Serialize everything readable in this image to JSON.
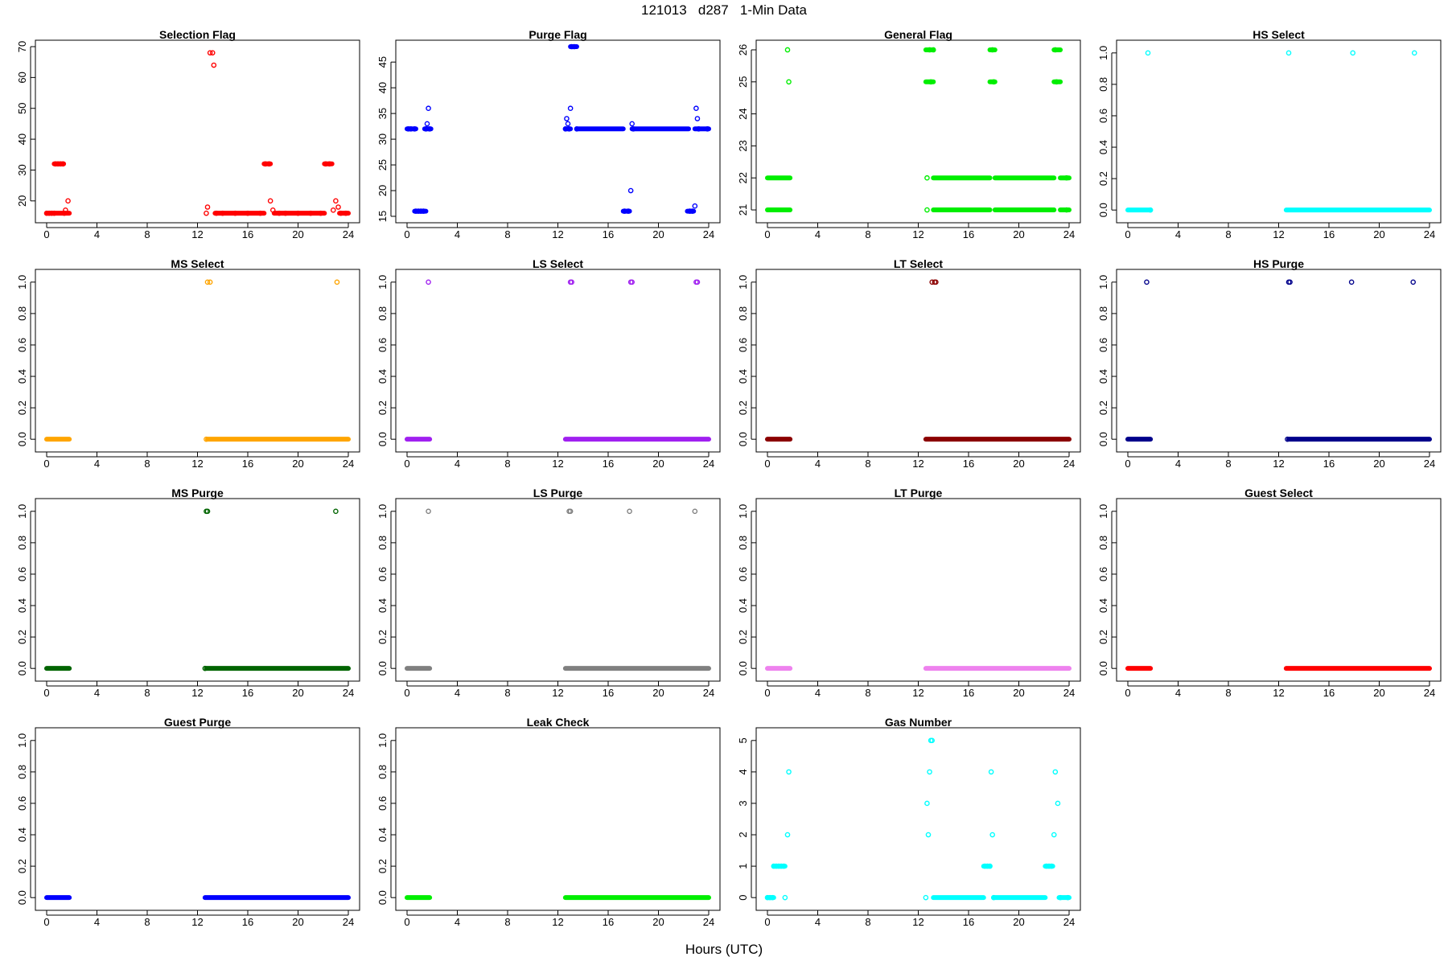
{
  "figure": {
    "title": "121013   d287   1-Min Data",
    "xlabel": "Hours (UTC)"
  },
  "chart_data": [
    {
      "type": "scatter",
      "title": "Selection Flag",
      "color": "#ff0000",
      "xlim": [
        0,
        24
      ],
      "xticks": [
        0,
        4,
        8,
        12,
        16,
        20,
        24
      ],
      "ylim": [
        15,
        70
      ],
      "yticks": [
        20,
        30,
        40,
        50,
        60,
        70
      ],
      "points": [
        [
          0,
          16
        ],
        [
          0.2,
          16
        ],
        [
          0.4,
          16
        ],
        [
          0.6,
          16
        ],
        [
          0.7,
          32
        ],
        [
          0.9,
          32
        ],
        [
          1.1,
          32
        ],
        [
          1.3,
          32
        ],
        [
          1.4,
          16
        ],
        [
          1.5,
          17
        ],
        [
          1.7,
          20
        ],
        [
          12.7,
          16
        ],
        [
          12.8,
          18
        ],
        [
          13.0,
          68
        ],
        [
          13.2,
          68
        ],
        [
          13.3,
          64
        ],
        [
          13.5,
          16
        ],
        [
          14,
          16
        ],
        [
          15,
          16
        ],
        [
          16,
          16
        ],
        [
          17,
          16
        ],
        [
          17.4,
          32
        ],
        [
          17.7,
          32
        ],
        [
          17.8,
          20
        ],
        [
          18.0,
          17
        ],
        [
          18.5,
          16
        ],
        [
          19,
          16
        ],
        [
          20,
          16
        ],
        [
          21,
          16
        ],
        [
          21.8,
          16
        ],
        [
          22.2,
          32
        ],
        [
          22.5,
          32
        ],
        [
          22.8,
          17
        ],
        [
          23.0,
          20
        ],
        [
          23.2,
          18
        ],
        [
          23.4,
          16
        ],
        [
          23.8,
          16
        ]
      ],
      "segments": [
        [
          0,
          1.8,
          16
        ],
        [
          0.6,
          1.35,
          32
        ],
        [
          13.4,
          17.3,
          16
        ],
        [
          17.3,
          17.8,
          32
        ],
        [
          18.1,
          22.1,
          16
        ],
        [
          22.1,
          22.7,
          32
        ],
        [
          23.3,
          24,
          16
        ]
      ]
    },
    {
      "type": "scatter",
      "title": "Purge Flag",
      "color": "#0000ff",
      "xlim": [
        0,
        24
      ],
      "xticks": [
        0,
        4,
        8,
        12,
        16,
        20,
        24
      ],
      "ylim": [
        15,
        48
      ],
      "yticks": [
        15,
        20,
        25,
        30,
        35,
        40,
        45
      ],
      "points": [
        [
          0.1,
          32
        ],
        [
          0.3,
          32
        ],
        [
          0.6,
          32
        ],
        [
          0.7,
          16
        ],
        [
          0.9,
          16
        ],
        [
          1.1,
          16
        ],
        [
          1.3,
          16
        ],
        [
          1.5,
          32
        ],
        [
          1.6,
          33
        ],
        [
          1.7,
          36
        ],
        [
          1.8,
          32
        ],
        [
          12.6,
          32
        ],
        [
          12.7,
          34
        ],
        [
          12.8,
          33
        ],
        [
          12.9,
          32
        ],
        [
          13.0,
          36
        ],
        [
          13.1,
          48
        ],
        [
          13.3,
          48
        ],
        [
          13.5,
          32
        ],
        [
          17.3,
          16
        ],
        [
          17.6,
          16
        ],
        [
          17.8,
          20
        ],
        [
          17.9,
          33
        ],
        [
          18.0,
          32
        ],
        [
          22.5,
          16
        ],
        [
          22.7,
          16
        ],
        [
          22.9,
          17
        ],
        [
          23.0,
          36
        ],
        [
          23.1,
          34
        ],
        [
          23.2,
          32
        ],
        [
          23.9,
          32
        ]
      ],
      "segments": [
        [
          0,
          0.7,
          32
        ],
        [
          0.6,
          1.5,
          16
        ],
        [
          1.4,
          1.9,
          32
        ],
        [
          12.6,
          13.0,
          32
        ],
        [
          13.0,
          13.5,
          48
        ],
        [
          13.5,
          17.2,
          32
        ],
        [
          17.2,
          17.7,
          16
        ],
        [
          17.9,
          22.4,
          32
        ],
        [
          22.3,
          22.8,
          16
        ],
        [
          22.9,
          24,
          32
        ]
      ]
    },
    {
      "type": "scatter",
      "title": "General Flag",
      "color": "#00ee00",
      "xlim": [
        0,
        24
      ],
      "xticks": [
        0,
        4,
        8,
        12,
        16,
        20,
        24
      ],
      "ylim": [
        20.8,
        26.1
      ],
      "yticks": [
        21,
        22,
        23,
        24,
        25,
        26
      ],
      "points": [
        [
          1.6,
          26
        ],
        [
          1.7,
          25
        ],
        [
          12.7,
          22
        ],
        [
          12.7,
          21
        ],
        [
          12.9,
          26
        ],
        [
          13.0,
          25
        ],
        [
          13.2,
          26
        ],
        [
          17.9,
          26
        ],
        [
          18.0,
          25
        ],
        [
          22.9,
          26
        ],
        [
          23.0,
          25
        ],
        [
          23.8,
          22
        ],
        [
          23.8,
          21
        ]
      ],
      "segments": [
        [
          0,
          1.8,
          22
        ],
        [
          0,
          1.8,
          21
        ],
        [
          12.6,
          13.2,
          26
        ],
        [
          12.6,
          13.2,
          25
        ],
        [
          13.2,
          17.7,
          22
        ],
        [
          13.2,
          17.7,
          21
        ],
        [
          17.7,
          18.1,
          26
        ],
        [
          17.7,
          18.1,
          25
        ],
        [
          18.1,
          22.8,
          22
        ],
        [
          18.1,
          22.8,
          21
        ],
        [
          22.8,
          23.3,
          26
        ],
        [
          22.8,
          23.3,
          25
        ],
        [
          23.3,
          24,
          22
        ],
        [
          23.3,
          24,
          21
        ]
      ]
    },
    {
      "type": "scatter",
      "title": "HS Select",
      "color": "#00ffff",
      "xlim": [
        0,
        24
      ],
      "xticks": [
        0,
        4,
        8,
        12,
        16,
        20,
        24
      ],
      "ylim": [
        -0.04,
        1.04
      ],
      "yticks": [
        0.0,
        0.2,
        0.4,
        0.6,
        0.8,
        1.0
      ],
      "points": [
        [
          1.6,
          1
        ],
        [
          1.8,
          0
        ],
        [
          12.8,
          1
        ],
        [
          17.9,
          1
        ],
        [
          22.8,
          1
        ]
      ],
      "segments": [
        [
          0,
          1.8,
          0
        ],
        [
          12.6,
          24,
          0
        ]
      ]
    },
    {
      "type": "scatter",
      "title": "MS Select",
      "color": "#ffa500",
      "xlim": [
        0,
        24
      ],
      "xticks": [
        0,
        4,
        8,
        12,
        16,
        20,
        24
      ],
      "ylim": [
        -0.04,
        1.04
      ],
      "yticks": [
        0.0,
        0.2,
        0.4,
        0.6,
        0.8,
        1.0
      ],
      "points": [
        [
          12.7,
          0
        ],
        [
          12.8,
          1
        ],
        [
          13.0,
          1
        ],
        [
          23.1,
          1
        ]
      ],
      "segments": [
        [
          0,
          1.8,
          0
        ],
        [
          12.8,
          24,
          0
        ]
      ]
    },
    {
      "type": "scatter",
      "title": "LS Select",
      "color": "#a020f0",
      "xlim": [
        0,
        24
      ],
      "xticks": [
        0,
        4,
        8,
        12,
        16,
        20,
        24
      ],
      "ylim": [
        -0.04,
        1.04
      ],
      "yticks": [
        0.0,
        0.2,
        0.4,
        0.6,
        0.8,
        1.0
      ],
      "points": [
        [
          1.7,
          1
        ],
        [
          13.0,
          1
        ],
        [
          13.1,
          1
        ],
        [
          17.8,
          1
        ],
        [
          17.9,
          1
        ],
        [
          23.0,
          1
        ],
        [
          23.1,
          1
        ]
      ],
      "segments": [
        [
          0,
          1.8,
          0
        ],
        [
          12.6,
          24,
          0
        ]
      ]
    },
    {
      "type": "scatter",
      "title": "LT Select",
      "color": "#8b0000",
      "xlim": [
        0,
        24
      ],
      "xticks": [
        0,
        4,
        8,
        12,
        16,
        20,
        24
      ],
      "ylim": [
        -0.04,
        1.04
      ],
      "yticks": [
        0.0,
        0.2,
        0.4,
        0.6,
        0.8,
        1.0
      ],
      "points": [
        [
          13.1,
          1
        ],
        [
          13.3,
          1
        ],
        [
          13.4,
          1
        ]
      ],
      "segments": [
        [
          0,
          1.8,
          0
        ],
        [
          12.6,
          24,
          0
        ]
      ]
    },
    {
      "type": "scatter",
      "title": "HS Purge",
      "color": "#00008b",
      "xlim": [
        0,
        24
      ],
      "xticks": [
        0,
        4,
        8,
        12,
        16,
        20,
        24
      ],
      "ylim": [
        -0.04,
        1.04
      ],
      "yticks": [
        0.0,
        0.2,
        0.4,
        0.6,
        0.8,
        1.0
      ],
      "points": [
        [
          1.5,
          1
        ],
        [
          12.7,
          0
        ],
        [
          12.8,
          1
        ],
        [
          12.9,
          1
        ],
        [
          17.8,
          1
        ],
        [
          22.7,
          1
        ]
      ],
      "segments": [
        [
          0,
          1.8,
          0
        ],
        [
          12.8,
          24,
          0
        ]
      ]
    },
    {
      "type": "scatter",
      "title": "MS Purge",
      "color": "#006400",
      "xlim": [
        0,
        24
      ],
      "xticks": [
        0,
        4,
        8,
        12,
        16,
        20,
        24
      ],
      "ylim": [
        -0.04,
        1.04
      ],
      "yticks": [
        0.0,
        0.2,
        0.4,
        0.6,
        0.8,
        1.0
      ],
      "points": [
        [
          12.6,
          0
        ],
        [
          12.7,
          1
        ],
        [
          12.8,
          1
        ],
        [
          23.0,
          1
        ]
      ],
      "segments": [
        [
          0,
          1.8,
          0
        ],
        [
          12.7,
          24,
          0
        ]
      ]
    },
    {
      "type": "scatter",
      "title": "LS Purge",
      "color": "#808080",
      "xlim": [
        0,
        24
      ],
      "xticks": [
        0,
        4,
        8,
        12,
        16,
        20,
        24
      ],
      "ylim": [
        -0.04,
        1.04
      ],
      "yticks": [
        0.0,
        0.2,
        0.4,
        0.6,
        0.8,
        1.0
      ],
      "points": [
        [
          1.7,
          1
        ],
        [
          12.9,
          1
        ],
        [
          13.0,
          1
        ],
        [
          17.7,
          1
        ],
        [
          22.9,
          1
        ]
      ],
      "segments": [
        [
          0,
          1.8,
          0
        ],
        [
          12.6,
          24,
          0
        ]
      ]
    },
    {
      "type": "scatter",
      "title": "LT Purge",
      "color": "#ee82ee",
      "xlim": [
        0,
        24
      ],
      "xticks": [
        0,
        4,
        8,
        12,
        16,
        20,
        24
      ],
      "ylim": [
        -0.04,
        1.04
      ],
      "yticks": [
        0.0,
        0.2,
        0.4,
        0.6,
        0.8,
        1.0
      ],
      "points": [],
      "segments": [
        [
          0,
          1.8,
          0
        ],
        [
          12.6,
          24,
          0
        ]
      ]
    },
    {
      "type": "scatter",
      "title": "Guest Select",
      "color": "#ff0000",
      "xlim": [
        0,
        24
      ],
      "xticks": [
        0,
        4,
        8,
        12,
        16,
        20,
        24
      ],
      "ylim": [
        -0.04,
        1.04
      ],
      "yticks": [
        0.0,
        0.2,
        0.4,
        0.6,
        0.8,
        1.0
      ],
      "points": [],
      "segments": [
        [
          0,
          1.8,
          0
        ],
        [
          12.6,
          24,
          0
        ]
      ]
    },
    {
      "type": "scatter",
      "title": "Guest Purge",
      "color": "#0000ff",
      "xlim": [
        0,
        24
      ],
      "xticks": [
        0,
        4,
        8,
        12,
        16,
        20,
        24
      ],
      "ylim": [
        -0.04,
        1.04
      ],
      "yticks": [
        0.0,
        0.2,
        0.4,
        0.6,
        0.8,
        1.0
      ],
      "points": [],
      "segments": [
        [
          0,
          1.8,
          0
        ],
        [
          12.6,
          24,
          0
        ]
      ]
    },
    {
      "type": "scatter",
      "title": "Leak Check",
      "color": "#00ee00",
      "xlim": [
        0,
        24
      ],
      "xticks": [
        0,
        4,
        8,
        12,
        16,
        20,
        24
      ],
      "ylim": [
        -0.04,
        1.04
      ],
      "yticks": [
        0.0,
        0.2,
        0.4,
        0.6,
        0.8,
        1.0
      ],
      "points": [],
      "segments": [
        [
          0,
          1.8,
          0
        ],
        [
          12.6,
          24,
          0
        ]
      ]
    },
    {
      "type": "scatter",
      "title": "Gas Number",
      "color": "#00ffff",
      "xlim": [
        0,
        24
      ],
      "xticks": [
        0,
        4,
        8,
        12,
        16,
        20,
        24
      ],
      "ylim": [
        -0.2,
        5.2
      ],
      "yticks": [
        0,
        1,
        2,
        3,
        4,
        5
      ],
      "points": [
        [
          0,
          0
        ],
        [
          0.2,
          0
        ],
        [
          0.4,
          0
        ],
        [
          0.5,
          1
        ],
        [
          0.7,
          1
        ],
        [
          0.9,
          1
        ],
        [
          1.1,
          1
        ],
        [
          1.3,
          1
        ],
        [
          1.4,
          0
        ],
        [
          1.6,
          2
        ],
        [
          1.7,
          4
        ],
        [
          12.6,
          0
        ],
        [
          12.7,
          3
        ],
        [
          12.8,
          2
        ],
        [
          12.9,
          4
        ],
        [
          13.0,
          5
        ],
        [
          13.1,
          5
        ],
        [
          17.3,
          1
        ],
        [
          17.5,
          1
        ],
        [
          17.7,
          1
        ],
        [
          17.8,
          4
        ],
        [
          17.9,
          2
        ],
        [
          18.0,
          0
        ],
        [
          22.2,
          1
        ],
        [
          22.4,
          1
        ],
        [
          22.6,
          1
        ],
        [
          22.8,
          2
        ],
        [
          22.9,
          4
        ],
        [
          23.1,
          3
        ],
        [
          23.3,
          0
        ],
        [
          23.9,
          0
        ]
      ],
      "segments": [
        [
          0,
          0.5,
          0
        ],
        [
          0.5,
          1.4,
          1
        ],
        [
          13.2,
          17.2,
          0
        ],
        [
          17.2,
          17.7,
          1
        ],
        [
          18.0,
          22.1,
          0
        ],
        [
          22.1,
          22.7,
          1
        ],
        [
          23.2,
          24,
          0
        ]
      ]
    }
  ]
}
